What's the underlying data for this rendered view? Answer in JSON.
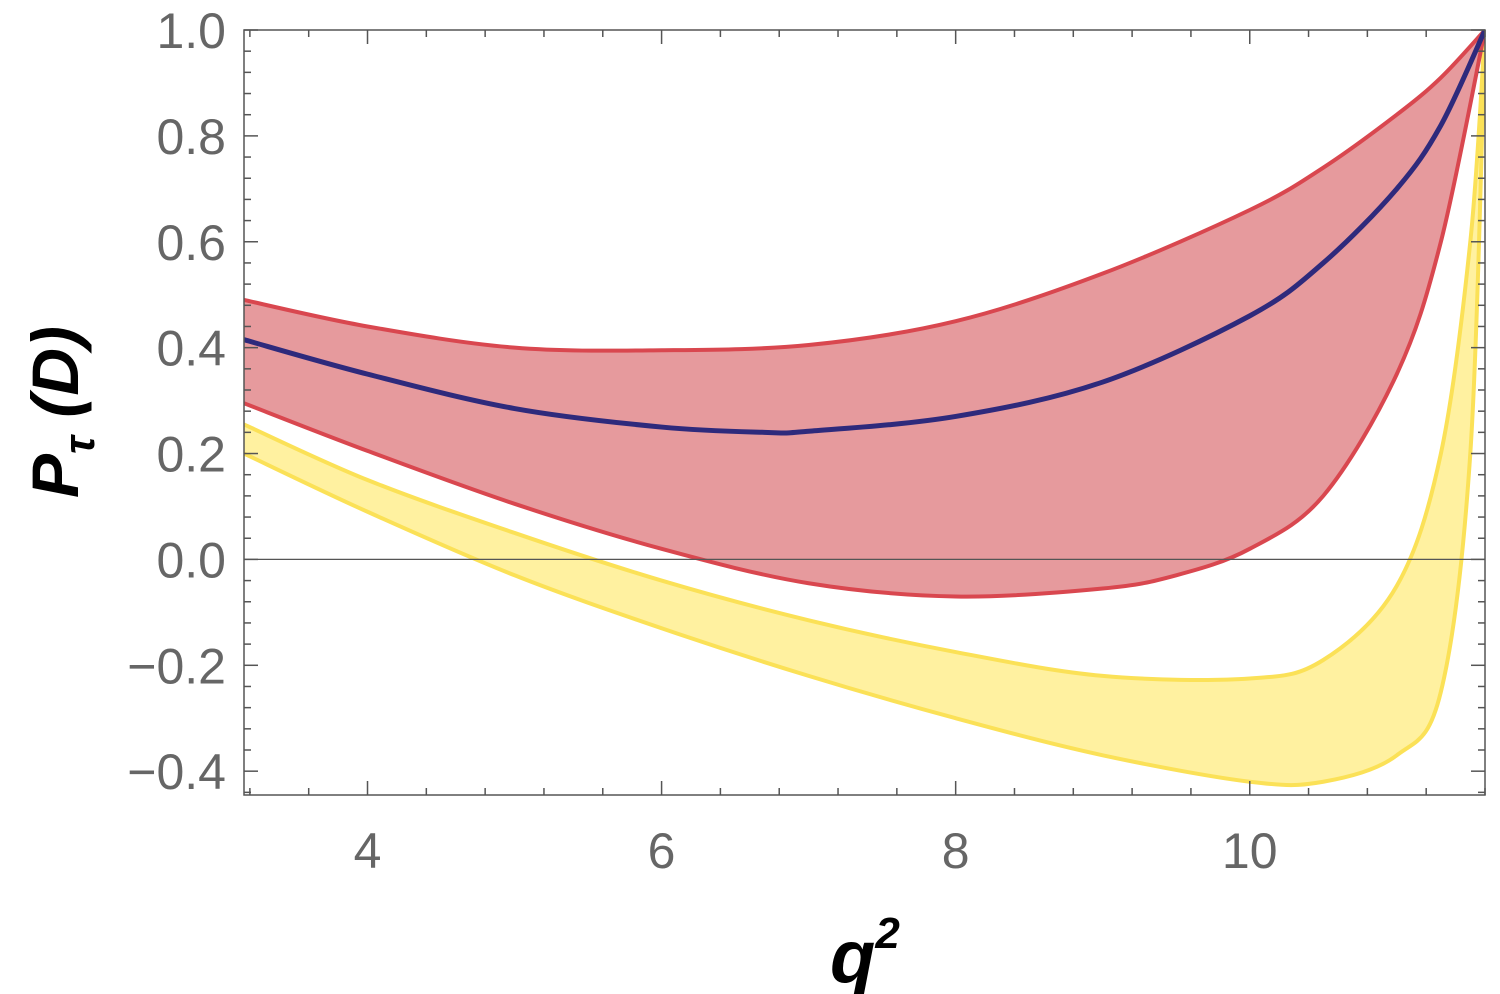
{
  "chart_data": {
    "type": "area",
    "title": "",
    "xlabel": {
      "base": "q",
      "sup": "2"
    },
    "ylabel": {
      "base": "P",
      "sub": "τ",
      "rest": " (D)"
    },
    "xlim": [
      3.16,
      11.6
    ],
    "ylim": [
      -0.445,
      1.0
    ],
    "x_ticks": [
      4,
      6,
      8,
      10
    ],
    "x_tick_labels": [
      "4",
      "6",
      "8",
      "10"
    ],
    "y_ticks": [
      -0.4,
      -0.2,
      0.0,
      0.2,
      0.4,
      0.6,
      0.8,
      1.0
    ],
    "y_tick_labels": [
      "−0.4",
      "−0.2",
      "0.0",
      "0.2",
      "0.4",
      "0.6",
      "0.8",
      "1.0"
    ],
    "zero_line": true,
    "grid": false,
    "colors": {
      "red_band_fill": "#e69a9d",
      "red_band_edge": "#d9474f",
      "yellow_band_fill": "#fff1a0",
      "yellow_band_edge": "#fbe157",
      "central_line": "#2e2a7c"
    },
    "bands": [
      {
        "color": "yellow",
        "upper": {
          "x": [
            3.16,
            4,
            5,
            6,
            7,
            8,
            9,
            10,
            10.5,
            11,
            11.3,
            11.5,
            11.6
          ],
          "y": [
            0.255,
            0.15,
            0.05,
            -0.04,
            -0.115,
            -0.175,
            -0.22,
            -0.225,
            -0.19,
            -0.05,
            0.2,
            0.6,
            1.0
          ]
        },
        "lower": {
          "x": [
            3.16,
            4,
            5,
            6,
            7,
            8,
            9,
            10,
            10.5,
            11,
            11.3,
            11.5,
            11.6
          ],
          "y": [
            0.2,
            0.09,
            -0.03,
            -0.13,
            -0.22,
            -0.3,
            -0.37,
            -0.42,
            -0.42,
            -0.37,
            -0.25,
            0.2,
            1.0
          ]
        }
      },
      {
        "color": "red",
        "upper": {
          "x": [
            3.16,
            4,
            5,
            6,
            7,
            8,
            9,
            10,
            10.5,
            11,
            11.3,
            11.6
          ],
          "y": [
            0.49,
            0.44,
            0.4,
            0.395,
            0.405,
            0.45,
            0.54,
            0.66,
            0.74,
            0.84,
            0.91,
            1.0
          ]
        },
        "lower": {
          "x": [
            3.16,
            4,
            5,
            6,
            7,
            8,
            9,
            9.5,
            10,
            10.5,
            11,
            11.3,
            11.6
          ],
          "y": [
            0.295,
            0.205,
            0.105,
            0.02,
            -0.045,
            -0.07,
            -0.055,
            -0.03,
            0.02,
            0.12,
            0.35,
            0.6,
            1.0
          ]
        }
      }
    ],
    "series": [
      {
        "x": [
          3.16,
          4,
          5,
          6,
          6.7,
          7,
          8,
          9,
          10,
          10.5,
          11,
          11.3,
          11.6
        ],
        "y": [
          0.415,
          0.35,
          0.285,
          0.25,
          0.24,
          0.242,
          0.27,
          0.335,
          0.46,
          0.56,
          0.7,
          0.82,
          1.0
        ]
      }
    ]
  }
}
